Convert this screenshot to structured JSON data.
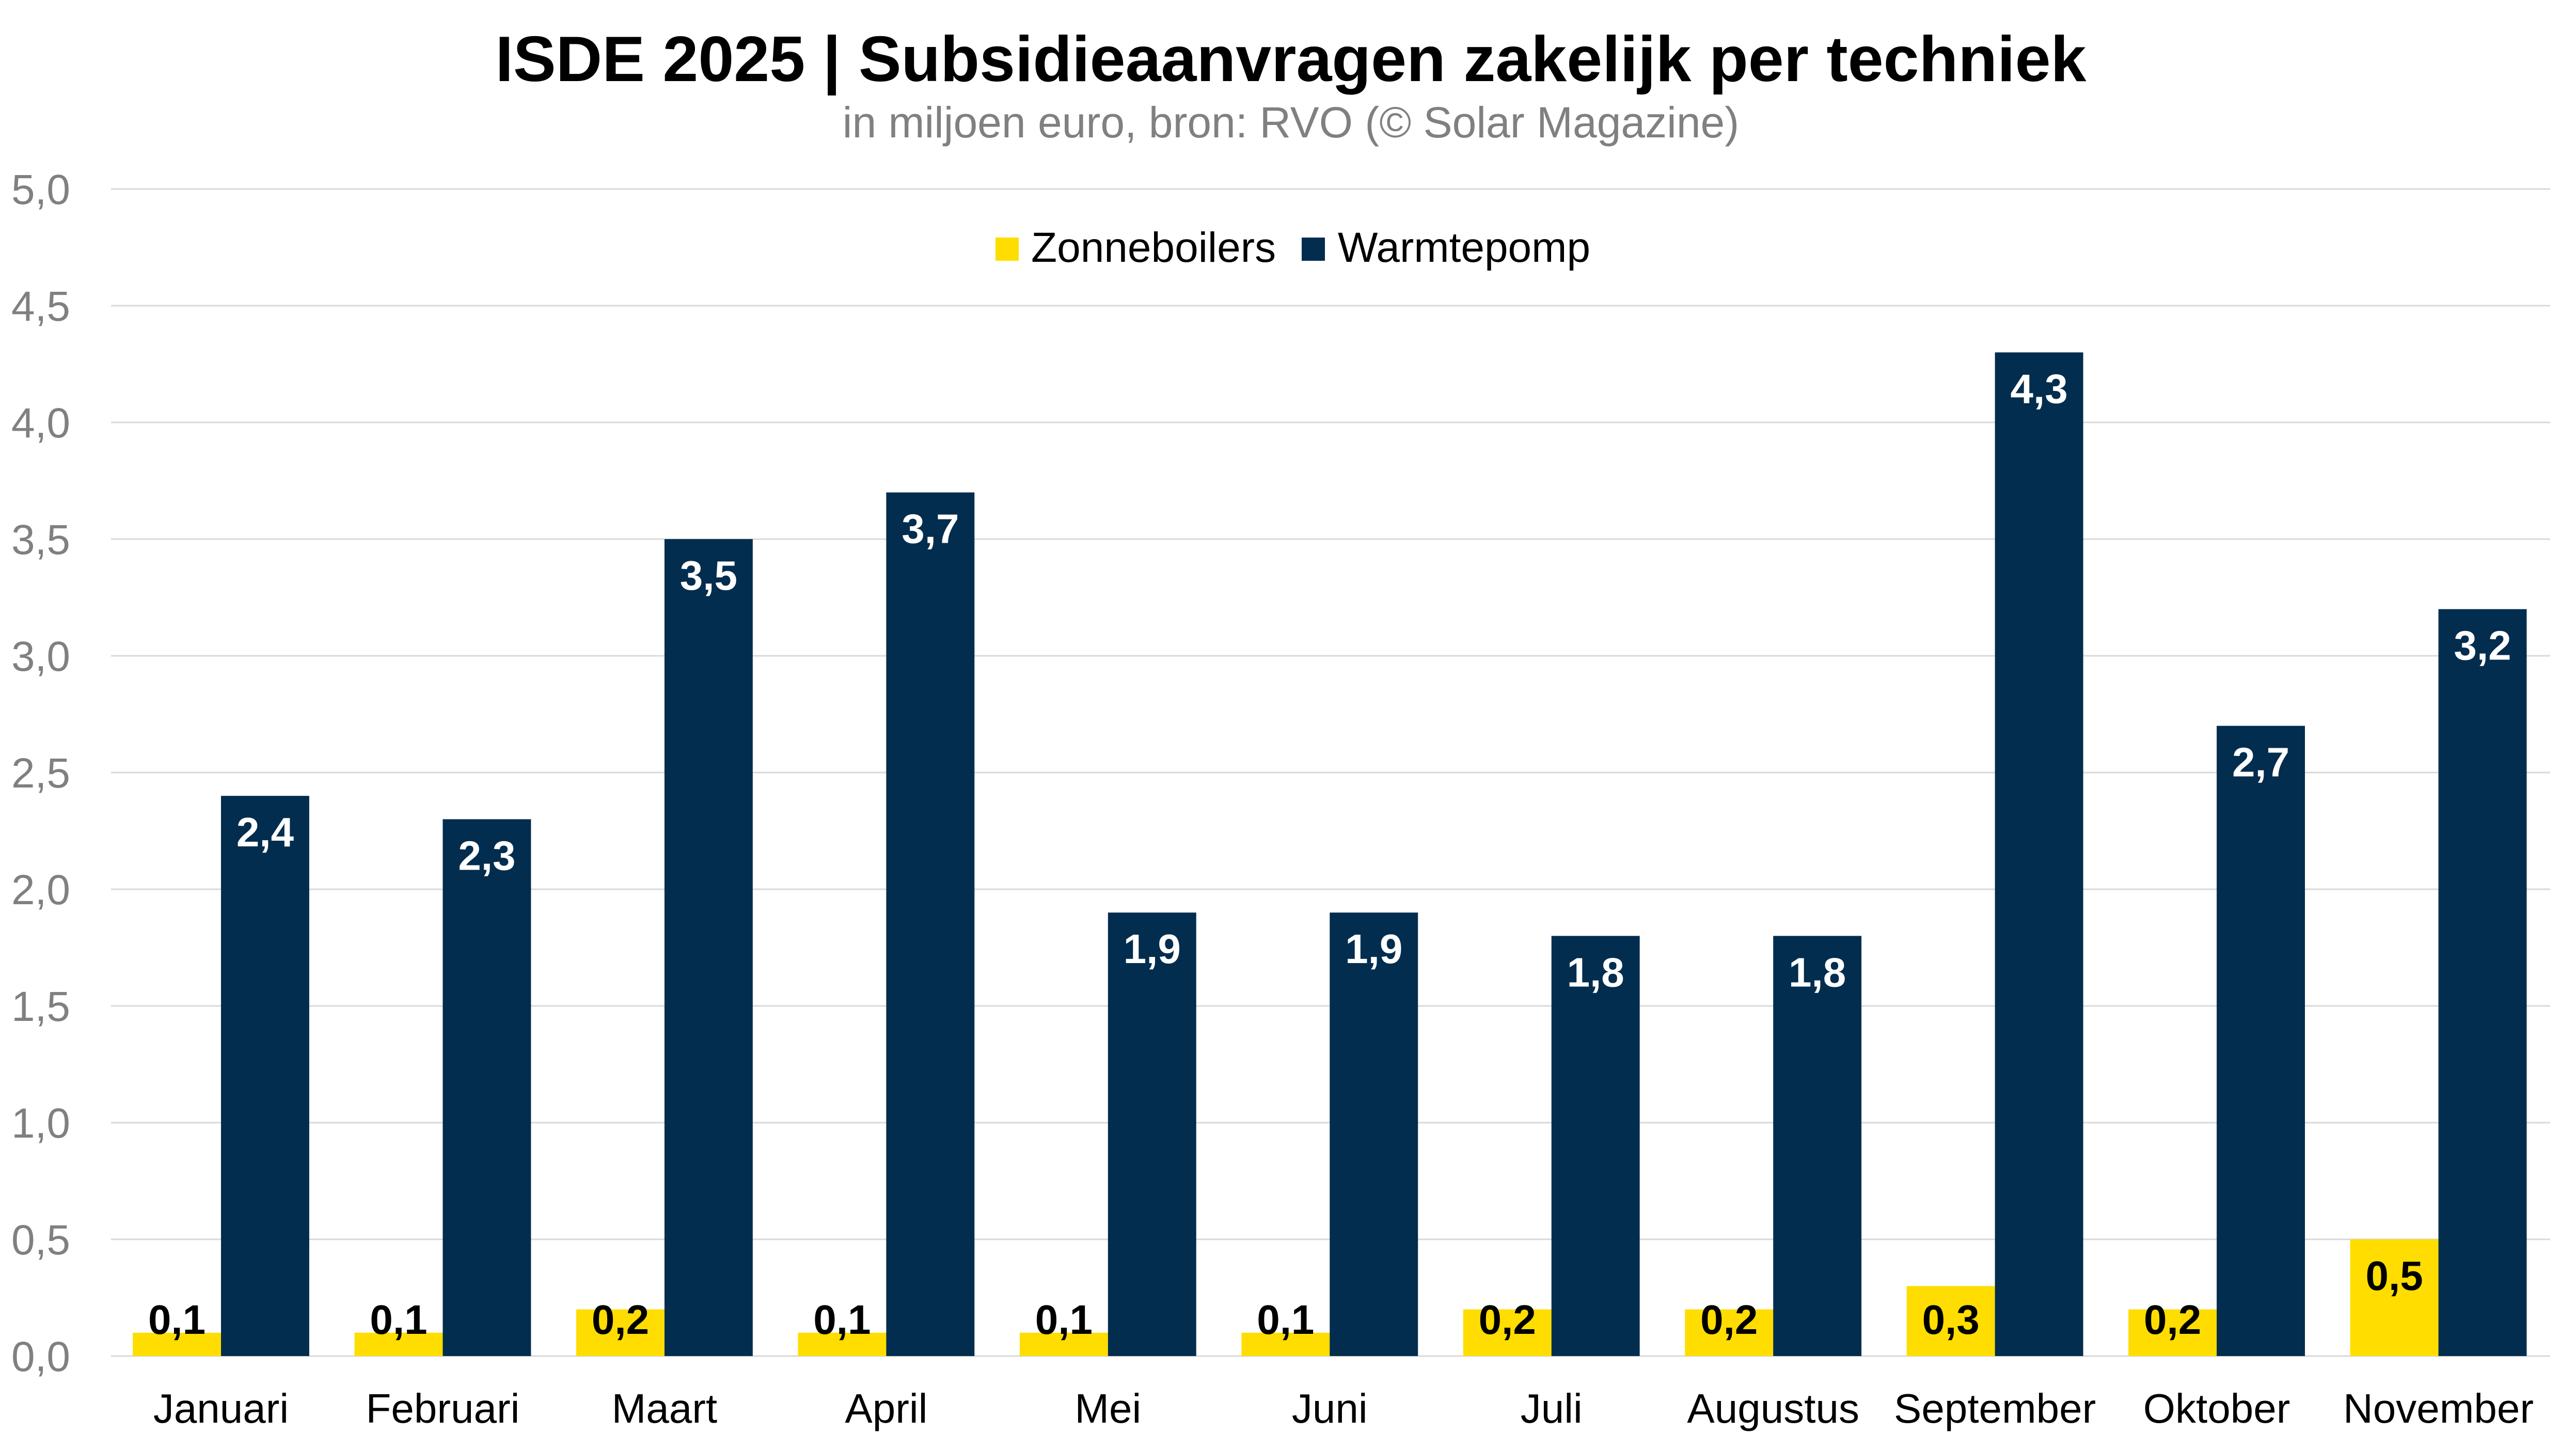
{
  "chart_data": {
    "type": "bar",
    "title": "ISDE 2025 | Subsidieaanvragen zakelijk per techniek",
    "subtitle": "in miljoen euro, bron: RVO (© Solar Magazine)",
    "xlabel": "",
    "ylabel": "",
    "ylim": [
      0,
      5
    ],
    "yticks": [
      0,
      0.5,
      1,
      1.5,
      2,
      2.5,
      3,
      3.5,
      4,
      4.5,
      5
    ],
    "ytick_labels": [
      "0,0",
      "0,5",
      "1,0",
      "1,5",
      "2,0",
      "2,5",
      "3,0",
      "3,5",
      "4,0",
      "4,5",
      "5,0"
    ],
    "grid": true,
    "legend_position": "top-center",
    "categories": [
      "Januari",
      "Februari",
      "Maart",
      "April",
      "Mei",
      "Juni",
      "Juli",
      "Augustus",
      "September",
      "Oktober",
      "November"
    ],
    "series": [
      {
        "name": "Zonneboilers",
        "color": "#FFDD00",
        "label_color": "#000000",
        "values": [
          0.1,
          0.1,
          0.2,
          0.1,
          0.1,
          0.1,
          0.2,
          0.2,
          0.3,
          0.2,
          0.5
        ],
        "labels": [
          "0,1",
          "0,1",
          "0,2",
          "0,1",
          "0,1",
          "0,1",
          "0,2",
          "0,2",
          "0,3",
          "0,2",
          "0,5"
        ]
      },
      {
        "name": "Warmtepomp",
        "color": "#022D4E",
        "label_color": "#ffffff",
        "values": [
          2.4,
          2.3,
          3.5,
          3.7,
          1.9,
          1.9,
          1.8,
          1.8,
          4.3,
          2.7,
          3.2
        ],
        "labels": [
          "2,4",
          "2,3",
          "3,5",
          "3,7",
          "1,9",
          "1,9",
          "1,8",
          "1,8",
          "4,3",
          "2,7",
          "3,2"
        ]
      }
    ]
  }
}
